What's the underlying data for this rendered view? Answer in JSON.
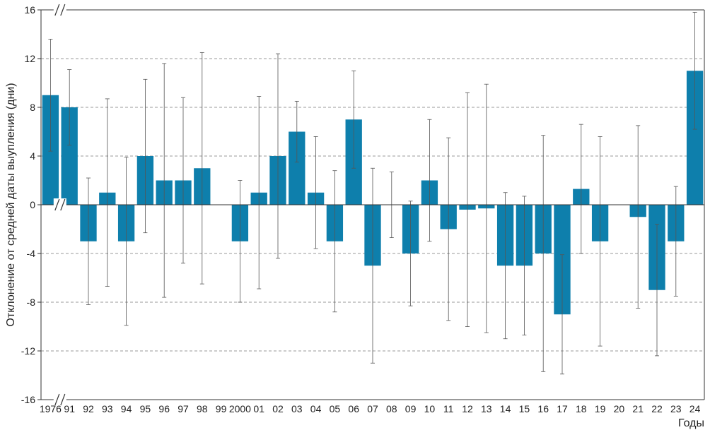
{
  "chart_data": {
    "type": "bar",
    "xlabel": "Годы",
    "ylabel": "Отклонение от средней даты выупления (дни)",
    "ylim": [
      -16,
      16
    ],
    "yticks": [
      -16,
      -12,
      -8,
      -4,
      0,
      4,
      8,
      12,
      16
    ],
    "grid": true,
    "axis_break_marker": "//",
    "categories": [
      "1976",
      "91",
      "92",
      "93",
      "94",
      "95",
      "96",
      "97",
      "98",
      "99",
      "2000",
      "01",
      "02",
      "03",
      "04",
      "05",
      "06",
      "07",
      "08",
      "09",
      "10",
      "11",
      "12",
      "13",
      "14",
      "15",
      "16",
      "17",
      "18",
      "19",
      "20",
      "21",
      "22",
      "23",
      "24"
    ],
    "values": [
      9,
      8,
      -3,
      1,
      -3,
      4,
      2,
      2,
      3,
      null,
      -3,
      1,
      4,
      6,
      1,
      -3,
      7,
      -5,
      null,
      -4,
      2,
      -2,
      -0.4,
      -0.3,
      -5,
      -5,
      -4,
      -9,
      1.3,
      -3,
      null,
      -1,
      -7,
      -3,
      11
    ],
    "error_low": [
      4.4,
      4.9,
      -8.2,
      -6.7,
      -9.9,
      -2.3,
      -7.6,
      -4.8,
      -6.5,
      null,
      -8,
      -6.9,
      -4.4,
      3.5,
      -3.6,
      -8.8,
      3,
      -13,
      -2.7,
      -8.3,
      -3,
      -9.5,
      -10,
      -10.5,
      -11,
      -10.7,
      -13.7,
      -13.9,
      -4,
      -11.6,
      null,
      -8.5,
      -12.4,
      -7.5,
      6.2
    ],
    "error_high": [
      13.6,
      11.1,
      2.2,
      8.7,
      3.9,
      10.3,
      11.6,
      8.8,
      12.5,
      null,
      2,
      8.9,
      12.4,
      8.5,
      5.6,
      2.8,
      11,
      3,
      2.7,
      0.3,
      7,
      5.5,
      9.2,
      9.9,
      1,
      0.7,
      5.7,
      -4.1,
      6.6,
      5.6,
      null,
      6.5,
      -1.6,
      1.5,
      15.8
    ],
    "bar_color": "#0e7fac",
    "error_bar_color": "#555555"
  }
}
